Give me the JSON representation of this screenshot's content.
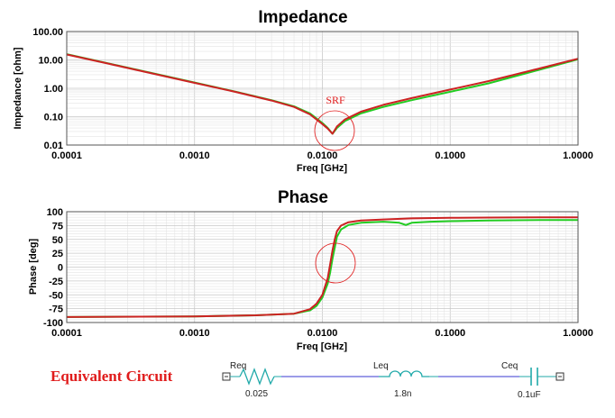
{
  "chart_data": [
    {
      "type": "line",
      "title": "Impedance",
      "xlabel": "Freq [GHz]",
      "ylabel": "Impedance [ohm]",
      "xscale": "log",
      "yscale": "log",
      "xlim": [
        0.0001,
        1.0
      ],
      "ylim": [
        0.01,
        100
      ],
      "xticks": [
        "0.0001",
        "0.0010",
        "0.0100",
        "0.1000",
        "1.0000"
      ],
      "yticks": [
        "100.00",
        "10.00",
        "1.00",
        "0.10",
        "0.01"
      ],
      "grid": true,
      "annotation": "SRF",
      "series": [
        {
          "color": "#22cc22",
          "x": [
            0.0001,
            0.0002,
            0.0005,
            0.001,
            0.002,
            0.004,
            0.006,
            0.008,
            0.01,
            0.011,
            0.012,
            0.013,
            0.015,
            0.02,
            0.03,
            0.05,
            0.1,
            0.2,
            0.5,
            1.0
          ],
          "y": [
            16,
            8,
            3.2,
            1.6,
            0.8,
            0.38,
            0.23,
            0.13,
            0.06,
            0.04,
            0.025,
            0.04,
            0.07,
            0.13,
            0.22,
            0.38,
            0.75,
            1.5,
            4.5,
            10.5
          ]
        },
        {
          "color": "#cc2222",
          "x": [
            0.0001,
            0.0002,
            0.0005,
            0.001,
            0.002,
            0.004,
            0.006,
            0.008,
            0.01,
            0.011,
            0.012,
            0.013,
            0.015,
            0.02,
            0.03,
            0.05,
            0.1,
            0.2,
            0.5,
            1.0
          ],
          "y": [
            15.5,
            7.8,
            3.1,
            1.55,
            0.78,
            0.37,
            0.22,
            0.12,
            0.055,
            0.038,
            0.025,
            0.045,
            0.08,
            0.15,
            0.26,
            0.45,
            0.9,
            1.8,
            5.0,
            11.0
          ]
        }
      ]
    },
    {
      "type": "line",
      "title": "Phase",
      "xlabel": "Freq [GHz]",
      "ylabel": "Phase [deg]",
      "xscale": "log",
      "xlim": [
        0.0001,
        1.0
      ],
      "ylim": [
        -100,
        100
      ],
      "xticks": [
        "0.0001",
        "0.0010",
        "0.0100",
        "0.1000",
        "1.0000"
      ],
      "yticks": [
        "100",
        "75",
        "50",
        "25",
        "0",
        "-25",
        "-50",
        "-75",
        "-100"
      ],
      "grid": true,
      "series": [
        {
          "color": "#22cc22",
          "x": [
            0.0001,
            0.001,
            0.003,
            0.006,
            0.008,
            0.009,
            0.01,
            0.011,
            0.0115,
            0.012,
            0.0125,
            0.013,
            0.014,
            0.016,
            0.02,
            0.03,
            0.04,
            0.045,
            0.05,
            0.07,
            0.1,
            0.2,
            0.5,
            1.0
          ],
          "y": [
            -90,
            -89,
            -87,
            -84,
            -78,
            -70,
            -55,
            -30,
            -10,
            15,
            35,
            55,
            68,
            76,
            80,
            82,
            80,
            76,
            80,
            82,
            83,
            84,
            85,
            85
          ]
        },
        {
          "color": "#cc2222",
          "x": [
            0.0001,
            0.001,
            0.003,
            0.006,
            0.008,
            0.009,
            0.01,
            0.011,
            0.0115,
            0.012,
            0.0125,
            0.013,
            0.014,
            0.016,
            0.02,
            0.03,
            0.05,
            0.1,
            0.2,
            0.5,
            1.0
          ],
          "y": [
            -90,
            -89,
            -87,
            -84,
            -76,
            -66,
            -50,
            -20,
            5,
            30,
            50,
            65,
            75,
            81,
            84,
            86,
            88,
            89,
            89.5,
            90,
            90
          ]
        }
      ]
    }
  ],
  "circuit": {
    "title": "Equivalent Circuit",
    "components": [
      {
        "name": "Req",
        "value": "0.025"
      },
      {
        "name": "Leq",
        "value": "1.8n"
      },
      {
        "name": "Ceq",
        "value": "0.1uF"
      }
    ]
  },
  "colors": {
    "accent": "#e01b1b",
    "wire": "#3a3ad0",
    "component": "#22aaaa"
  }
}
